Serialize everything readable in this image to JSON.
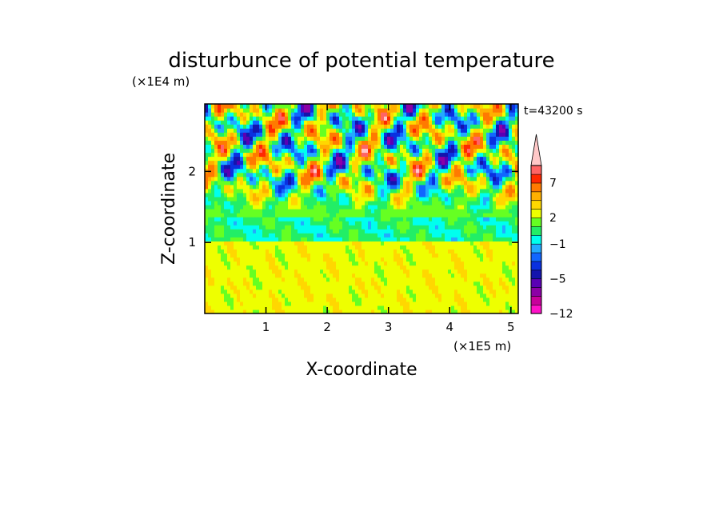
{
  "chart_data": {
    "type": "heatmap",
    "title": "disturbunce of potential temperature",
    "xlabel": "X-coordinate",
    "ylabel": "Z-coordinate",
    "x_unit_label": "(×1E5 m)",
    "y_unit_label": "(×1E4 m)",
    "time_label": "t=43200 s",
    "xlim": [
      0,
      5.12
    ],
    "ylim": [
      0,
      2.95
    ],
    "x_ticks": [
      1,
      2,
      3,
      4,
      5
    ],
    "x_tick_labels": [
      "1",
      "2",
      "3",
      "4",
      "5"
    ],
    "y_ticks": [
      1,
      2
    ],
    "y_tick_labels": [
      "1",
      "2"
    ],
    "colorbar": {
      "levels": [
        -12,
        -10,
        -8,
        -6,
        -5,
        -4,
        -3,
        -2,
        -1,
        0,
        1,
        2,
        3,
        4,
        5,
        7,
        8,
        9
      ],
      "tick_values": [
        -12,
        -5,
        -1,
        2,
        7
      ],
      "tick_labels": [
        "−12",
        "−5",
        "−1",
        "2",
        "7"
      ],
      "colors": [
        "#ff11c8",
        "#c8009b",
        "#8c00a6",
        "#5a00b4",
        "#1414ad",
        "#0a30e0",
        "#1166ff",
        "#22aaff",
        "#00ffee",
        "#22ee66",
        "#66ff22",
        "#eeff00",
        "#ffd700",
        "#ffb000",
        "#ff7a00",
        "#ff2800",
        "#ff6464",
        "#ffc8c8"
      ],
      "extend": "max"
    },
    "field_description": {
      "z_0_to_1": [
        2,
        3
      ],
      "z_1_to_1.35": [
        -1,
        1
      ],
      "z_1.35_to_2.95": [
        -6,
        8
      ]
    }
  }
}
